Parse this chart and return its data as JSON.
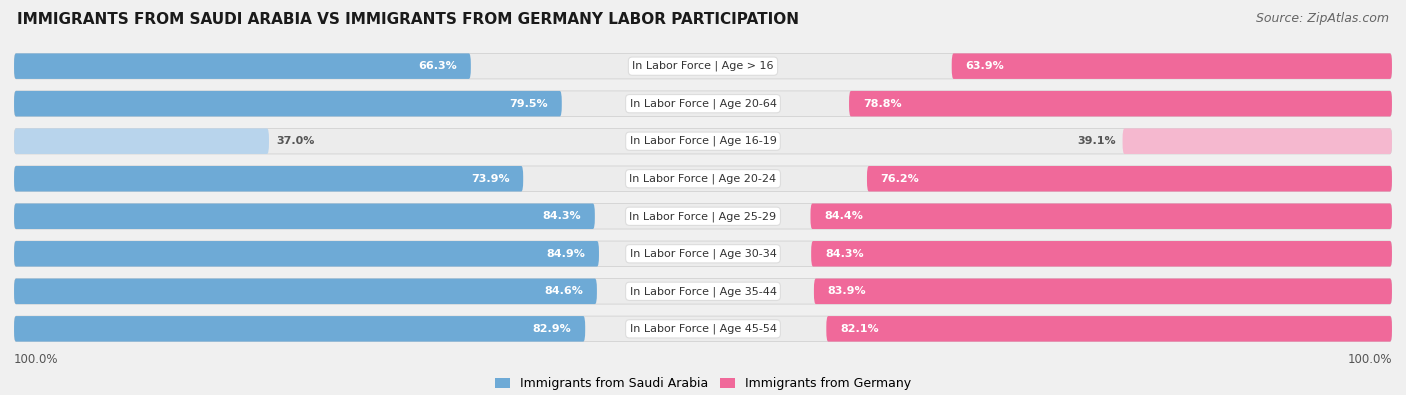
{
  "title": "IMMIGRANTS FROM SAUDI ARABIA VS IMMIGRANTS FROM GERMANY LABOR PARTICIPATION",
  "source": "Source: ZipAtlas.com",
  "categories": [
    "In Labor Force | Age > 16",
    "In Labor Force | Age 20-64",
    "In Labor Force | Age 16-19",
    "In Labor Force | Age 20-24",
    "In Labor Force | Age 25-29",
    "In Labor Force | Age 30-34",
    "In Labor Force | Age 35-44",
    "In Labor Force | Age 45-54"
  ],
  "saudi_values": [
    66.3,
    79.5,
    37.0,
    73.9,
    84.3,
    84.9,
    84.6,
    82.9
  ],
  "germany_values": [
    63.9,
    78.8,
    39.1,
    76.2,
    84.4,
    84.3,
    83.9,
    82.1
  ],
  "saudi_color": "#6eaad6",
  "saudi_light_color": "#b8d4ec",
  "germany_color": "#f0699a",
  "germany_light_color": "#f5b8cf",
  "row_bg_color": "#e8e8e8",
  "bar_bg_color": "#f5f5f5",
  "background_color": "#f0f0f0",
  "label_bg_color": "#ffffff",
  "max_value": 100.0,
  "legend_saudi": "Immigrants from Saudi Arabia",
  "legend_germany": "Immigrants from Germany",
  "title_fontsize": 11,
  "source_fontsize": 9,
  "bar_label_fontsize": 8,
  "cat_label_fontsize": 8
}
